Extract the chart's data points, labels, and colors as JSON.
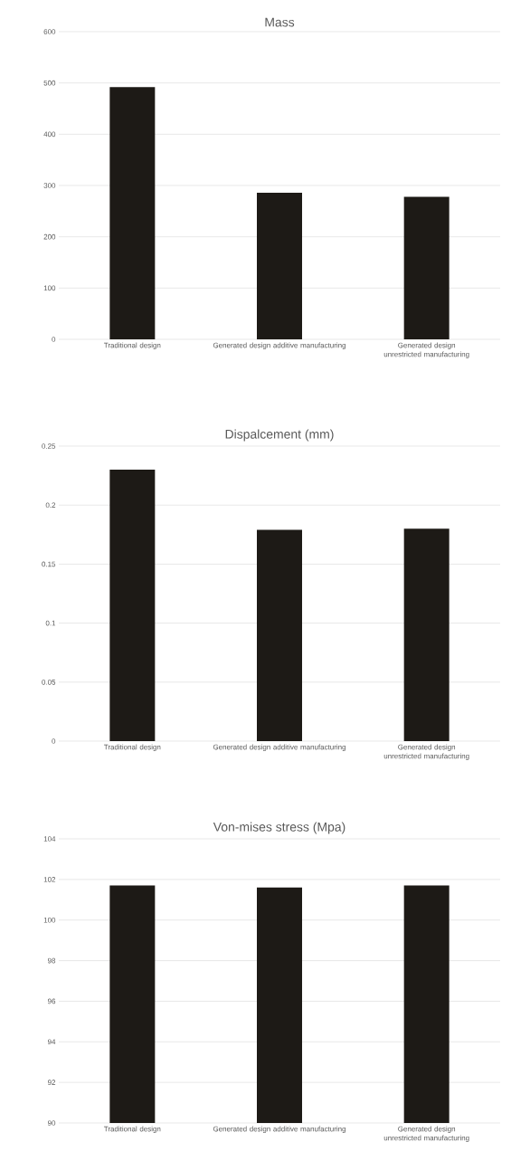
{
  "chart_data": [
    {
      "type": "bar",
      "title": "Mass",
      "categories": [
        "Traditional design",
        "Generated design additive manufacturing",
        "Generated design unrestricted manufacturing"
      ],
      "values": [
        492,
        286,
        278
      ],
      "color": "#1d1a16",
      "ylim": [
        0,
        600
      ],
      "yticks": [
        0,
        100,
        200,
        300,
        400,
        500,
        600
      ],
      "grid": "y"
    },
    {
      "type": "bar",
      "title": "Dispalcement (mm)",
      "categories": [
        "Traditional design",
        "Generated design additive manufacturing",
        "Generated design unrestricted manufacturing"
      ],
      "values": [
        0.23,
        0.179,
        0.18
      ],
      "color": "#1d1a16",
      "ylim": [
        0,
        0.25
      ],
      "yticks": [
        0,
        0.05,
        0.1,
        0.15,
        0.2,
        0.25
      ],
      "grid": "y"
    },
    {
      "type": "bar",
      "title": "Von-mises stress (Mpa)",
      "categories": [
        "Traditional design",
        "Generated design additive manufacturing",
        "Generated design unrestricted manufacturing"
      ],
      "values": [
        101.7,
        101.6,
        101.7
      ],
      "color": "#1d1a16",
      "ylim": [
        90,
        104
      ],
      "yticks": [
        90,
        92,
        94,
        96,
        98,
        100,
        102,
        104
      ],
      "grid": "y"
    }
  ]
}
